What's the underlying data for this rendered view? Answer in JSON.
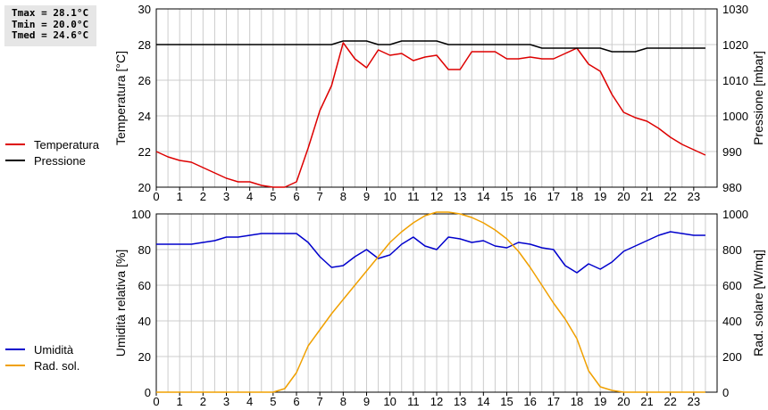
{
  "stats": {
    "tmax": "Tmax = 28.1°C",
    "tmin": "Tmin = 20.0°C",
    "tmed": "Tmed = 24.6°C"
  },
  "colors": {
    "temperature": "#dd0000",
    "pressure": "#000000",
    "humidity": "#0000cc",
    "solar": "#f0a000",
    "grid": "#cccccc"
  },
  "chart_data": [
    {
      "type": "line",
      "x_ticks": [
        "0",
        "1",
        "2",
        "3",
        "4",
        "5",
        "6",
        "7",
        "8",
        "9",
        "10",
        "11",
        "12",
        "13",
        "14",
        "15",
        "16",
        "17",
        "18",
        "19",
        "20",
        "21",
        "22",
        "23"
      ],
      "xlim": [
        0,
        24
      ],
      "ylabel_left": "Temperatura [°C]",
      "ylabel_right": "Pressione [mbar]",
      "ylim_left": [
        20,
        30
      ],
      "ylim_right": [
        980,
        1030
      ],
      "y_ticks_left": [
        "20",
        "22",
        "24",
        "26",
        "28",
        "30"
      ],
      "y_ticks_right": [
        "980",
        "990",
        "1000",
        "1010",
        "1020",
        "1030"
      ],
      "legend": [
        "Temperatura",
        "Pressione"
      ],
      "grid": true,
      "series": [
        {
          "name": "Temperatura",
          "axis": "left",
          "x": [
            0,
            0.5,
            1,
            1.5,
            2,
            2.5,
            3,
            3.5,
            4,
            4.5,
            5,
            5.5,
            6,
            6.5,
            7,
            7.5,
            8,
            8.5,
            9,
            9.5,
            10,
            10.5,
            11,
            11.5,
            12,
            12.5,
            13,
            13.5,
            14,
            14.5,
            15,
            15.5,
            16,
            16.5,
            17,
            17.5,
            18,
            18.5,
            19,
            19.5,
            20,
            20.5,
            21,
            21.5,
            22,
            22.5,
            23,
            23.5
          ],
          "y": [
            22.0,
            21.7,
            21.5,
            21.4,
            21.1,
            20.8,
            20.5,
            20.3,
            20.3,
            20.1,
            20.0,
            20.0,
            20.3,
            22.2,
            24.3,
            25.7,
            28.1,
            27.2,
            26.7,
            27.7,
            27.4,
            27.5,
            27.1,
            27.3,
            27.4,
            26.6,
            26.6,
            27.6,
            27.6,
            27.6,
            27.2,
            27.2,
            27.3,
            27.2,
            27.2,
            27.5,
            27.8,
            26.9,
            26.5,
            25.2,
            24.2,
            23.9,
            23.7,
            23.3,
            22.8,
            22.4,
            22.1,
            21.8
          ]
        },
        {
          "name": "Pressione",
          "axis": "right",
          "x": [
            0,
            1,
            2,
            3,
            4,
            5,
            6,
            7,
            7.5,
            8,
            9,
            9.5,
            10,
            10.5,
            12,
            12.5,
            13,
            16,
            16.5,
            17,
            18,
            19,
            19.5,
            20.5,
            21,
            22,
            23,
            23.5
          ],
          "y": [
            1020,
            1020,
            1020,
            1020,
            1020,
            1020,
            1020,
            1020,
            1020,
            1021,
            1021,
            1020,
            1020,
            1021,
            1021,
            1020,
            1020,
            1020,
            1019,
            1019,
            1019,
            1019,
            1018,
            1018,
            1019,
            1019,
            1019,
            1019
          ]
        }
      ]
    },
    {
      "type": "line",
      "x_ticks": [
        "0",
        "1",
        "2",
        "3",
        "4",
        "5",
        "6",
        "7",
        "8",
        "9",
        "10",
        "11",
        "12",
        "13",
        "14",
        "15",
        "16",
        "17",
        "18",
        "19",
        "20",
        "21",
        "22",
        "23"
      ],
      "xlim": [
        0,
        24
      ],
      "ylabel_left": "Umidità relativa [%]",
      "ylabel_right": "Rad. solare [W/mq]",
      "ylim_left": [
        0,
        100
      ],
      "ylim_right": [
        0,
        1000
      ],
      "y_ticks_left": [
        "0",
        "20",
        "40",
        "60",
        "80",
        "100"
      ],
      "y_ticks_right": [
        "0",
        "200",
        "400",
        "600",
        "800",
        "1000"
      ],
      "legend": [
        "Umidità",
        "Rad. sol."
      ],
      "grid": true,
      "series": [
        {
          "name": "Umidità",
          "axis": "left",
          "x": [
            0,
            0.5,
            1,
            1.5,
            2,
            2.5,
            3,
            3.5,
            4,
            4.5,
            5,
            5.5,
            6,
            6.5,
            7,
            7.5,
            8,
            8.5,
            9,
            9.5,
            10,
            10.5,
            11,
            11.5,
            12,
            12.5,
            13,
            13.5,
            14,
            14.5,
            15,
            15.5,
            16,
            16.5,
            17,
            17.5,
            18,
            18.5,
            19,
            19.5,
            20,
            20.5,
            21,
            21.5,
            22,
            22.5,
            23,
            23.5
          ],
          "y": [
            83,
            83,
            83,
            83,
            84,
            85,
            87,
            87,
            88,
            89,
            89,
            89,
            89,
            84,
            76,
            70,
            71,
            76,
            80,
            75,
            77,
            83,
            87,
            82,
            80,
            87,
            86,
            84,
            85,
            82,
            81,
            84,
            83,
            81,
            80,
            71,
            67,
            72,
            69,
            73,
            79,
            82,
            85,
            88,
            90,
            89,
            88,
            88
          ]
        },
        {
          "name": "Rad. sol.",
          "axis": "right",
          "x": [
            0,
            1,
            2,
            3,
            4,
            5,
            5.5,
            6,
            6.5,
            7,
            7.5,
            8,
            8.5,
            9,
            9.5,
            10,
            10.5,
            11,
            11.5,
            12,
            12.5,
            13,
            13.5,
            14,
            14.5,
            15,
            15.5,
            16,
            16.5,
            17,
            17.5,
            18,
            18.5,
            19,
            19.5,
            20,
            21,
            22,
            23,
            23.5
          ],
          "y": [
            0,
            0,
            0,
            0,
            0,
            0,
            20,
            110,
            260,
            350,
            440,
            520,
            600,
            680,
            760,
            840,
            900,
            950,
            990,
            1010,
            1010,
            1000,
            980,
            950,
            910,
            860,
            790,
            700,
            600,
            500,
            410,
            300,
            120,
            30,
            10,
            0,
            0,
            0,
            0,
            0
          ]
        }
      ]
    }
  ]
}
